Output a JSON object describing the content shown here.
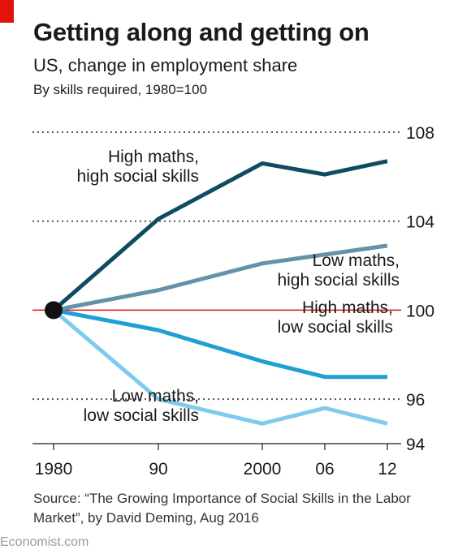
{
  "header": {
    "title": "Getting along and getting on",
    "subtitle": "US, change in employment share",
    "unit_note": "By skills required, 1980=100"
  },
  "source": "Source: “The Growing Importance of Social Skills in the Labor Market”, by David Deming, Aug 2016",
  "brand": "Economist.com",
  "colors": {
    "accent": "#e3120b",
    "baseline": "#e3120b",
    "dark_navy": "#0f4c63",
    "slate_blue": "#6592a8",
    "mid_blue": "#1f9fd4",
    "light_blue": "#7ecbee"
  },
  "chart_data": {
    "type": "line",
    "x": [
      1980,
      1990,
      2000,
      2006,
      2012
    ],
    "x_tick_labels": [
      "1980",
      "90",
      "2000",
      "06",
      "12"
    ],
    "y_ticks": [
      94,
      96,
      100,
      104,
      108
    ],
    "y_tick_labels": [
      "94",
      "96",
      "100",
      "104",
      "108"
    ],
    "ylim": [
      94,
      108
    ],
    "baseline": 100,
    "grid": "dotted horizontal",
    "series": [
      {
        "name": "High maths, high social skills",
        "label_lines": [
          "High maths,",
          "high social skills"
        ],
        "color": "#0f4c63",
        "values": [
          100,
          104.1,
          106.6,
          106.1,
          106.7
        ]
      },
      {
        "name": "Low maths, high social skills",
        "label_lines": [
          "Low maths,",
          "high social skills"
        ],
        "color": "#6592a8",
        "values": [
          100,
          100.9,
          102.1,
          102.5,
          102.9
        ]
      },
      {
        "name": "High maths, low social skills",
        "label_lines": [
          "High maths,",
          "low social skills"
        ],
        "color": "#1f9fd4",
        "values": [
          100,
          99.1,
          97.7,
          97.0,
          97.0
        ]
      },
      {
        "name": "Low maths, low social skills",
        "label_lines": [
          "Low maths,",
          "low social skills"
        ],
        "color": "#7ecbee",
        "values": [
          100,
          96.0,
          94.9,
          95.6,
          94.9
        ]
      }
    ]
  }
}
